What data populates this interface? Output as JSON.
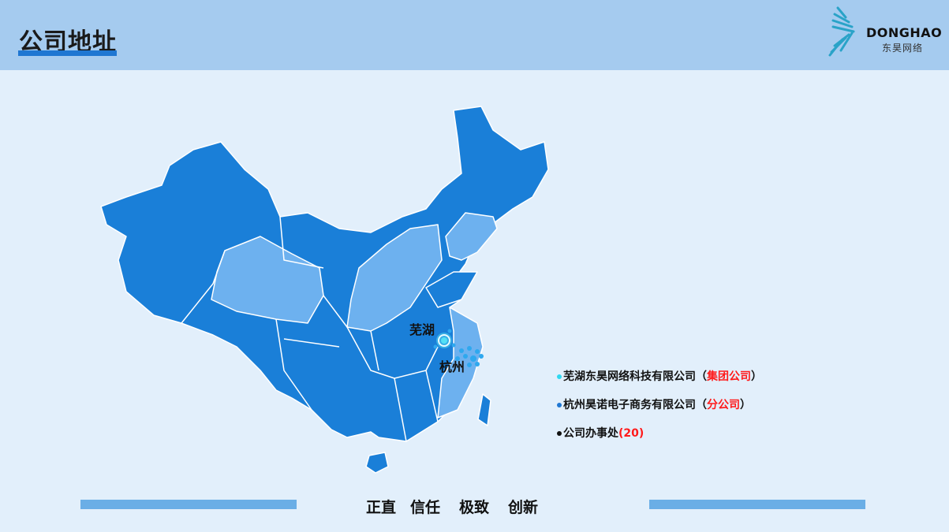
{
  "header": {
    "title": "公司地址"
  },
  "logo": {
    "name_en": "DONGHAO",
    "name_cn": "东昊网络"
  },
  "map": {
    "cities": [
      {
        "label": "芜湖"
      },
      {
        "label": "杭州"
      }
    ],
    "colors": {
      "province": "#1a7fd8",
      "highlight": "#6db1ef",
      "border": "#ffffff",
      "wuhu_marker": "#53e0f5",
      "hangzhou_marker": "#2ea8ef"
    }
  },
  "legend": [
    {
      "name": "芜湖东昊网络科技有限公司",
      "open": "（",
      "tag": "集团公司",
      "close": "）",
      "dot_color": "#2fd8f0"
    },
    {
      "name": "杭州昊诺电子商务有限公司",
      "open": "（",
      "tag": "分公司",
      "close": "）",
      "dot_color": "#1f77d2"
    },
    {
      "name": "公司办事处",
      "open": "(",
      "tag": "20",
      "close": ")",
      "dot_color": "#111111"
    }
  ],
  "footer": {
    "values": [
      "正直",
      "信任",
      "极致",
      "创新"
    ]
  }
}
